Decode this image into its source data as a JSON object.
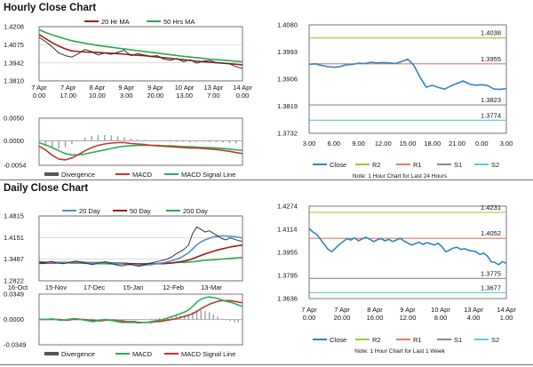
{
  "titles": {
    "hourly": "Hourly Close Chart",
    "daily": "Daily Close Chart"
  },
  "colors": {
    "close": "#2e86c1",
    "ma_a": "#9b1c1c",
    "ma_b": "#2ea84e",
    "ma_20": "#4f8fd0",
    "price": "#333333",
    "r2": "#9acd32",
    "r1": "#e07b6b",
    "s1": "#8a8a8a",
    "s2": "#5fc6d8",
    "macd": "#c0392b",
    "signal": "#27ae60",
    "divergence": "#9e9e9e"
  },
  "hourly_price": {
    "legend": [
      "20 Hr MA",
      "50 Hrs MA"
    ],
    "yticks": [
      "1.4208",
      "1.4075",
      "1.3942",
      "1.3810"
    ],
    "ylim": [
      1.381,
      1.4208
    ],
    "xticks": [
      [
        "7 Apr",
        "0.00"
      ],
      [
        "7 Apr",
        "17.00"
      ],
      [
        "8 Apr",
        "10.00"
      ],
      [
        "9 Apr",
        "3.00"
      ],
      [
        "9 Apr",
        "20.00"
      ],
      [
        "10 Apr",
        "13.00"
      ],
      [
        "13 Apr",
        "7.00"
      ],
      [
        "14 Apr",
        "0.00"
      ]
    ],
    "close": [
      1.413,
      1.4098,
      1.406,
      1.4015,
      1.3995,
      1.3985,
      1.401,
      1.404,
      1.4025,
      1.4,
      1.4015,
      1.4005,
      1.402,
      1.4035,
      1.3995,
      1.401,
      1.4,
      1.399,
      1.3995,
      1.397,
      1.396,
      1.3975,
      1.395,
      1.3965,
      1.394,
      1.3955,
      1.396,
      1.3945,
      1.394,
      1.3935,
      1.3915,
      1.39
    ],
    "ma20": [
      1.415,
      1.412,
      1.409,
      1.4065,
      1.4045,
      1.403,
      1.4025,
      1.4022,
      1.402,
      1.4018,
      1.4015,
      1.4012,
      1.401,
      1.4006,
      1.4002,
      1.3998,
      1.3995,
      1.399,
      1.3985,
      1.398,
      1.3975,
      1.397,
      1.3965,
      1.396,
      1.3955,
      1.395,
      1.3947,
      1.3943,
      1.394,
      1.3936,
      1.3932,
      1.3928
    ],
    "ma50": [
      1.4185,
      1.4165,
      1.4148,
      1.4132,
      1.4118,
      1.4105,
      1.4095,
      1.4086,
      1.4078,
      1.407,
      1.4063,
      1.4057,
      1.405,
      1.4044,
      1.4038,
      1.4032,
      1.4026,
      1.402,
      1.4014,
      1.4008,
      1.4002,
      1.3996,
      1.399,
      1.3985,
      1.398,
      1.3975,
      1.397,
      1.3966,
      1.3962,
      1.3958,
      1.3954,
      1.395
    ]
  },
  "hourly_macd": {
    "yticks": [
      "0.0050",
      "0.0000",
      "-0.0054"
    ],
    "ylim": [
      -0.0054,
      0.005
    ],
    "legend": [
      "Divergence",
      "MACD",
      "MACD Signal Line"
    ],
    "macd": [
      -0.0012,
      -0.002,
      -0.0032,
      -0.004,
      -0.0042,
      -0.0038,
      -0.003,
      -0.0022,
      -0.0015,
      -0.001,
      -0.0007,
      -0.0005,
      -0.0004,
      -0.0004,
      -0.0006,
      -0.0007,
      -0.0008,
      -0.001,
      -0.0011,
      -0.0012,
      -0.0013,
      -0.0014,
      -0.0015,
      -0.0016,
      -0.0016,
      -0.0017,
      -0.0018,
      -0.0019,
      -0.0021,
      -0.0023,
      -0.0026,
      -0.0028
    ],
    "signal": [
      -0.0004,
      -0.0009,
      -0.0015,
      -0.0022,
      -0.0028,
      -0.0031,
      -0.0031,
      -0.0029,
      -0.0026,
      -0.0023,
      -0.002,
      -0.0017,
      -0.0014,
      -0.0012,
      -0.0011,
      -0.001,
      -0.001,
      -0.001,
      -0.001,
      -0.0011,
      -0.0011,
      -0.0012,
      -0.0013,
      -0.0013,
      -0.0014,
      -0.0015,
      -0.0015,
      -0.0016,
      -0.0017,
      -0.0018,
      -0.002,
      -0.0021
    ],
    "divergence": [
      -0.0008,
      -0.0011,
      -0.0017,
      -0.0018,
      -0.0014,
      -0.0007,
      0.0001,
      0.0007,
      0.0011,
      0.0013,
      0.0013,
      0.0012,
      0.001,
      0.0008,
      0.0005,
      0.0003,
      0.0002,
      0.0,
      -0.0001,
      -0.0001,
      -0.0002,
      -0.0002,
      -0.0002,
      -0.0003,
      -0.0002,
      -0.0002,
      -0.0003,
      -0.0003,
      -0.0004,
      -0.0005,
      -0.0006,
      -0.0007
    ]
  },
  "hourly_pivot": {
    "yticks": [
      "1.4080",
      "1.3993",
      "1.3906",
      "1.3819",
      "1.3732"
    ],
    "ylim": [
      1.3732,
      1.408
    ],
    "xticks": [
      "3.00",
      "6.00",
      "9.00",
      "12.00",
      "15.00",
      "18.00",
      "21.00",
      "0.00",
      "3.00"
    ],
    "levels": {
      "R2": 1.4038,
      "R1": 1.3955,
      "S1": 1.3823,
      "S2": 1.3774
    },
    "level_labels": {
      "R2": "1.4038",
      "R1": "1.3955",
      "S1": "1.3823",
      "S2": "1.3774"
    },
    "close": [
      1.3953,
      1.3955,
      1.395,
      1.3946,
      1.3944,
      1.3946,
      1.3952,
      1.3953,
      1.3957,
      1.3956,
      1.396,
      1.3958,
      1.3959,
      1.3958,
      1.3956,
      1.3962,
      1.397,
      1.395,
      1.3912,
      1.388,
      1.3886,
      1.3879,
      1.3874,
      1.3884,
      1.3892,
      1.39,
      1.389,
      1.3886,
      1.3888,
      1.3885,
      1.3874,
      1.3873,
      1.3876
    ],
    "legend": [
      "Close",
      "R2",
      "R1",
      "S1",
      "S2"
    ],
    "note": "Note: 1 Hour Chart for Last 24 Hours"
  },
  "daily_price": {
    "legend": [
      "20 Day",
      "50 Day",
      "200 Day"
    ],
    "yticks": [
      "1.4815",
      "1.4151",
      "1.3487",
      "1.2822"
    ],
    "ylim": [
      1.2822,
      1.4815
    ],
    "xticks": [
      "16-Oct",
      "15-Nov",
      "17-Dec",
      "15-Jan",
      "12-Feb",
      "13-Mar"
    ],
    "close": [
      1.34,
      1.338,
      1.339,
      1.342,
      1.337,
      1.336,
      1.335,
      1.338,
      1.341,
      1.343,
      1.34,
      1.338,
      1.334,
      1.332,
      1.336,
      1.339,
      1.341,
      1.337,
      1.333,
      1.33,
      1.328,
      1.331,
      1.333,
      1.33,
      1.327,
      1.33,
      1.334,
      1.337,
      1.34,
      1.343,
      1.346,
      1.35,
      1.356,
      1.365,
      1.372,
      1.38,
      1.392,
      1.428,
      1.448,
      1.44,
      1.432,
      1.436,
      1.428,
      1.42,
      1.412,
      1.408,
      1.414,
      1.41,
      1.406,
      1.404
    ],
    "ma20": [
      1.339,
      1.339,
      1.339,
      1.339,
      1.339,
      1.339,
      1.339,
      1.339,
      1.339,
      1.34,
      1.34,
      1.339,
      1.338,
      1.337,
      1.337,
      1.337,
      1.338,
      1.338,
      1.337,
      1.336,
      1.334,
      1.333,
      1.332,
      1.332,
      1.331,
      1.33,
      1.331,
      1.332,
      1.334,
      1.336,
      1.338,
      1.341,
      1.344,
      1.348,
      1.353,
      1.36,
      1.368,
      1.38,
      1.393,
      1.402,
      1.408,
      1.413,
      1.417,
      1.419,
      1.42,
      1.42,
      1.419,
      1.418,
      1.416,
      1.414
    ],
    "ma50": [
      1.336,
      1.336,
      1.337,
      1.337,
      1.337,
      1.338,
      1.338,
      1.338,
      1.338,
      1.338,
      1.338,
      1.338,
      1.338,
      1.338,
      1.338,
      1.338,
      1.338,
      1.337,
      1.337,
      1.337,
      1.336,
      1.336,
      1.335,
      1.335,
      1.334,
      1.334,
      1.334,
      1.334,
      1.334,
      1.335,
      1.335,
      1.336,
      1.337,
      1.339,
      1.341,
      1.343,
      1.346,
      1.35,
      1.355,
      1.36,
      1.365,
      1.369,
      1.373,
      1.377,
      1.38,
      1.383,
      1.386,
      1.388,
      1.39,
      1.392
    ],
    "ma200": [
      1.34,
      1.34,
      1.339,
      1.339,
      1.339,
      1.338,
      1.338,
      1.338,
      1.337,
      1.337,
      1.337,
      1.336,
      1.336,
      1.336,
      1.335,
      1.335,
      1.335,
      1.334,
      1.334,
      1.334,
      1.334,
      1.334,
      1.334,
      1.334,
      1.334,
      1.334,
      1.335,
      1.335,
      1.335,
      1.336,
      1.336,
      1.337,
      1.337,
      1.338,
      1.339,
      1.339,
      1.34,
      1.341,
      1.342,
      1.344,
      1.345,
      1.346,
      1.347,
      1.348,
      1.349,
      1.35,
      1.351,
      1.352,
      1.353,
      1.354
    ]
  },
  "daily_macd": {
    "yticks": [
      "0.0349",
      "0.0000",
      "-0.0349"
    ],
    "ylim": [
      -0.0349,
      0.0349
    ],
    "legend": [
      "Divergence",
      "MACD",
      "MACD Signal Line"
    ],
    "macd": [
      0.0,
      0.0,
      0.0,
      0.001,
      0.0,
      -0.001,
      -0.001,
      0.0,
      0.001,
      0.001,
      0.0,
      -0.001,
      -0.002,
      -0.003,
      -0.002,
      -0.001,
      0.0,
      -0.001,
      -0.002,
      -0.003,
      -0.004,
      -0.004,
      -0.004,
      -0.004,
      -0.005,
      -0.004,
      -0.004,
      -0.003,
      -0.002,
      -0.001,
      0.0,
      0.002,
      0.004,
      0.006,
      0.008,
      0.01,
      0.013,
      0.018,
      0.024,
      0.028,
      0.03,
      0.031,
      0.03,
      0.029,
      0.027,
      0.025,
      0.024,
      0.022,
      0.02,
      0.018
    ],
    "signal": [
      0.0,
      0.0,
      0.0,
      0.0,
      0.0,
      0.0,
      -0.001,
      -0.001,
      0.0,
      0.0,
      0.0,
      0.0,
      -0.001,
      -0.001,
      -0.002,
      -0.002,
      -0.001,
      -0.001,
      -0.001,
      -0.002,
      -0.002,
      -0.003,
      -0.003,
      -0.003,
      -0.004,
      -0.004,
      -0.004,
      -0.004,
      -0.003,
      -0.003,
      -0.002,
      -0.001,
      0.0,
      0.001,
      0.003,
      0.004,
      0.006,
      0.008,
      0.011,
      0.015,
      0.018,
      0.021,
      0.023,
      0.025,
      0.026,
      0.026,
      0.026,
      0.025,
      0.024,
      0.023
    ],
    "divergence": [
      0.0,
      0.0,
      0.0,
      0.001,
      0.0,
      -0.001,
      0.0,
      0.001,
      0.001,
      0.001,
      0.0,
      -0.001,
      -0.001,
      -0.002,
      0.0,
      0.001,
      0.001,
      0.0,
      -0.001,
      -0.001,
      -0.002,
      -0.001,
      -0.001,
      -0.001,
      -0.001,
      0.0,
      0.0,
      0.001,
      0.001,
      0.002,
      0.002,
      0.003,
      0.004,
      0.005,
      0.005,
      0.006,
      0.007,
      0.01,
      0.013,
      0.013,
      0.012,
      0.01,
      0.007,
      0.004,
      0.001,
      -0.001,
      -0.002,
      -0.003,
      -0.004,
      -0.005
    ]
  },
  "daily_pivot": {
    "yticks": [
      "1.4274",
      "1.4114",
      "1.3955",
      "1.3795",
      "1.3636"
    ],
    "ylim": [
      1.3636,
      1.4274
    ],
    "xticks": [
      [
        "7 Apr",
        "0.00"
      ],
      [
        "7 Apr",
        "20.00"
      ],
      [
        "8 Apr",
        "16.00"
      ],
      [
        "9 Apr",
        "12.00"
      ],
      [
        "10 Apr",
        "8.00"
      ],
      [
        "13 Apr",
        "4.00"
      ],
      [
        "14 Apr",
        "1.00"
      ]
    ],
    "levels": {
      "R2": 1.4231,
      "R1": 1.4052,
      "S1": 1.3775,
      "S2": 1.3677
    },
    "level_labels": {
      "R2": "1.4231",
      "R1": "1.4052",
      "S1": "1.3775",
      "S2": "1.3677"
    },
    "close": [
      1.412,
      1.4095,
      1.408,
      1.4045,
      1.401,
      1.3975,
      1.396,
      1.3985,
      1.401,
      1.403,
      1.405,
      1.404,
      1.4055,
      1.4035,
      1.4048,
      1.406,
      1.4045,
      1.403,
      1.4042,
      1.405,
      1.4035,
      1.4045,
      1.403,
      1.404,
      1.4052,
      1.4035,
      1.402,
      1.4005,
      1.4015,
      1.4025,
      1.401,
      1.4022,
      1.4015,
      1.4005,
      1.4018,
      1.3995,
      1.396,
      1.397,
      1.3985,
      1.399,
      1.3975,
      1.398,
      1.397,
      1.3965,
      1.396,
      1.394,
      1.395,
      1.393,
      1.389,
      1.3885,
      1.387,
      1.3892,
      1.3878
    ],
    "legend": [
      "Close",
      "R2",
      "R1",
      "S1",
      "S2"
    ],
    "note": "Note: 1 Hour Chart for Last 1 Week"
  }
}
